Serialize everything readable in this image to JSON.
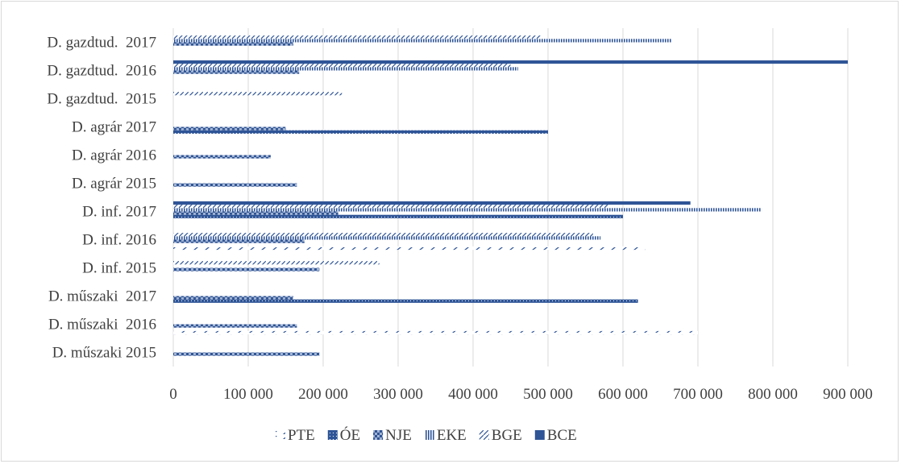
{
  "chart_data": {
    "type": "bar",
    "orientation": "horizontal",
    "categories": [
      "D. műszaki 2015",
      "D. műszaki  2016",
      "D. műszaki  2017",
      "D. inf. 2015",
      "D. inf. 2016",
      "D. inf. 2017",
      "D. agrár 2015",
      "D. agrár 2016",
      "D. agrár 2017",
      "D. gazdtud.  2015",
      "D. gazdtud.  2016",
      "D. gazdtud.  2017"
    ],
    "series": [
      {
        "name": "PTE",
        "values": [
          0,
          700000,
          0,
          0,
          630000,
          0,
          0,
          0,
          0,
          0,
          0,
          0
        ]
      },
      {
        "name": "ÓE",
        "values": [
          0,
          0,
          620000,
          0,
          0,
          600000,
          0,
          0,
          500000,
          0,
          0,
          0
        ]
      },
      {
        "name": "NJE",
        "values": [
          195000,
          165000,
          160000,
          195000,
          175000,
          220000,
          165000,
          130000,
          150000,
          0,
          168000,
          160000
        ]
      },
      {
        "name": "EKE",
        "values": [
          0,
          0,
          0,
          0,
          570000,
          785000,
          0,
          0,
          0,
          0,
          460000,
          665000
        ]
      },
      {
        "name": "BGE",
        "values": [
          0,
          0,
          0,
          275000,
          560000,
          580000,
          0,
          0,
          0,
          225000,
          450000,
          490000
        ]
      },
      {
        "name": "BCE",
        "values": [
          0,
          0,
          0,
          0,
          0,
          690000,
          0,
          0,
          0,
          0,
          900000,
          0
        ]
      }
    ],
    "xlim": [
      0,
      900000
    ],
    "x_ticks": [
      "0",
      "100 000",
      "200 000",
      "300 000",
      "400 000",
      "500 000",
      "600 000",
      "700 000",
      "800 000",
      "900 000"
    ],
    "x_tick_values": [
      0,
      100000,
      200000,
      300000,
      400000,
      500000,
      600000,
      700000,
      800000,
      900000
    ],
    "grid": true,
    "legend_position": "bottom",
    "colors": {
      "series": "#2f5597",
      "grid": "#d9d9d9",
      "text": "#404040"
    }
  }
}
